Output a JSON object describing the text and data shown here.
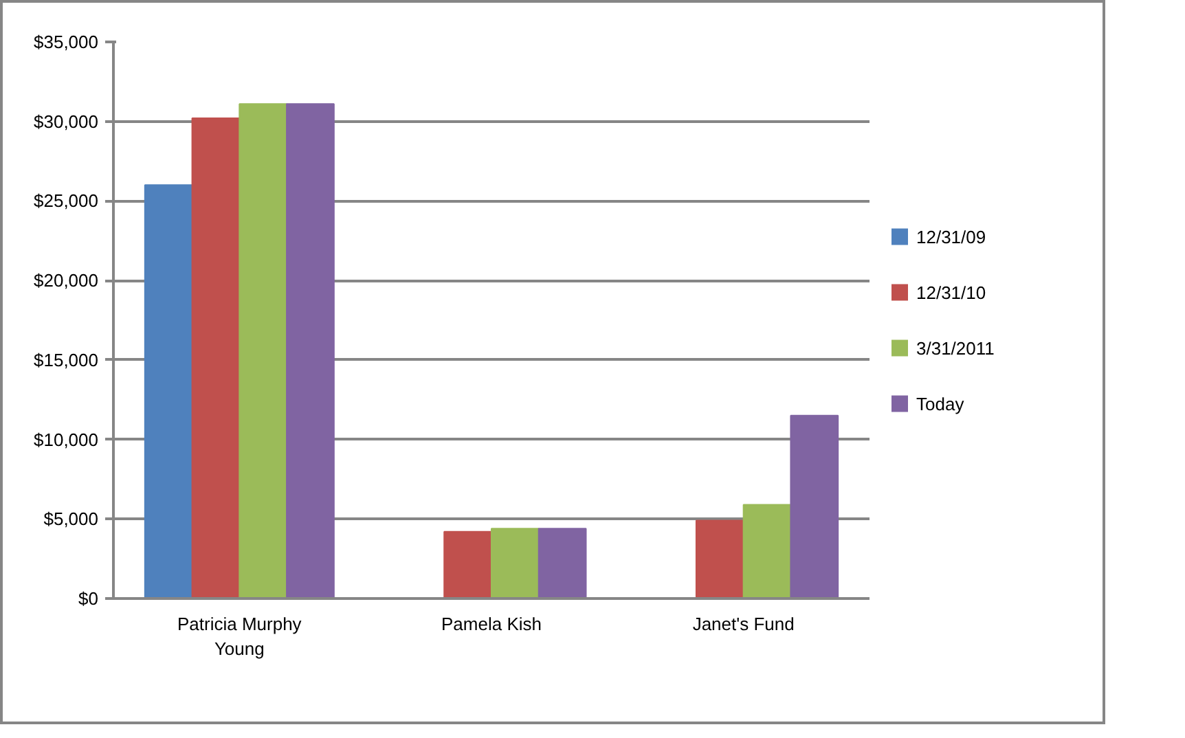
{
  "chart_data": {
    "type": "bar",
    "categories": [
      "Patricia Murphy Young",
      "Pamela Kish",
      "Janet's Fund"
    ],
    "series": [
      {
        "name": "12/31/09",
        "color": "#4f81bd",
        "values": [
          26000,
          null,
          null
        ]
      },
      {
        "name": "12/31/10",
        "color": "#c0504d",
        "values": [
          30200,
          4200,
          4900
        ]
      },
      {
        "name": "3/31/2011",
        "color": "#9bbb59",
        "values": [
          31100,
          4400,
          5900
        ]
      },
      {
        "name": "Today",
        "color": "#8064a2",
        "values": [
          31100,
          4400,
          11500
        ]
      }
    ],
    "ylim": [
      0,
      35000
    ],
    "yticks": [
      {
        "value": 0,
        "label": "$0"
      },
      {
        "value": 5000,
        "label": "$5,000"
      },
      {
        "value": 10000,
        "label": "$10,000"
      },
      {
        "value": 15000,
        "label": "$15,000"
      },
      {
        "value": 20000,
        "label": "$20,000"
      },
      {
        "value": 25000,
        "label": "$25,000"
      },
      {
        "value": 30000,
        "label": "$30,000"
      },
      {
        "value": 35000,
        "label": "$35,000"
      }
    ],
    "grid": "y",
    "legend": "right"
  }
}
